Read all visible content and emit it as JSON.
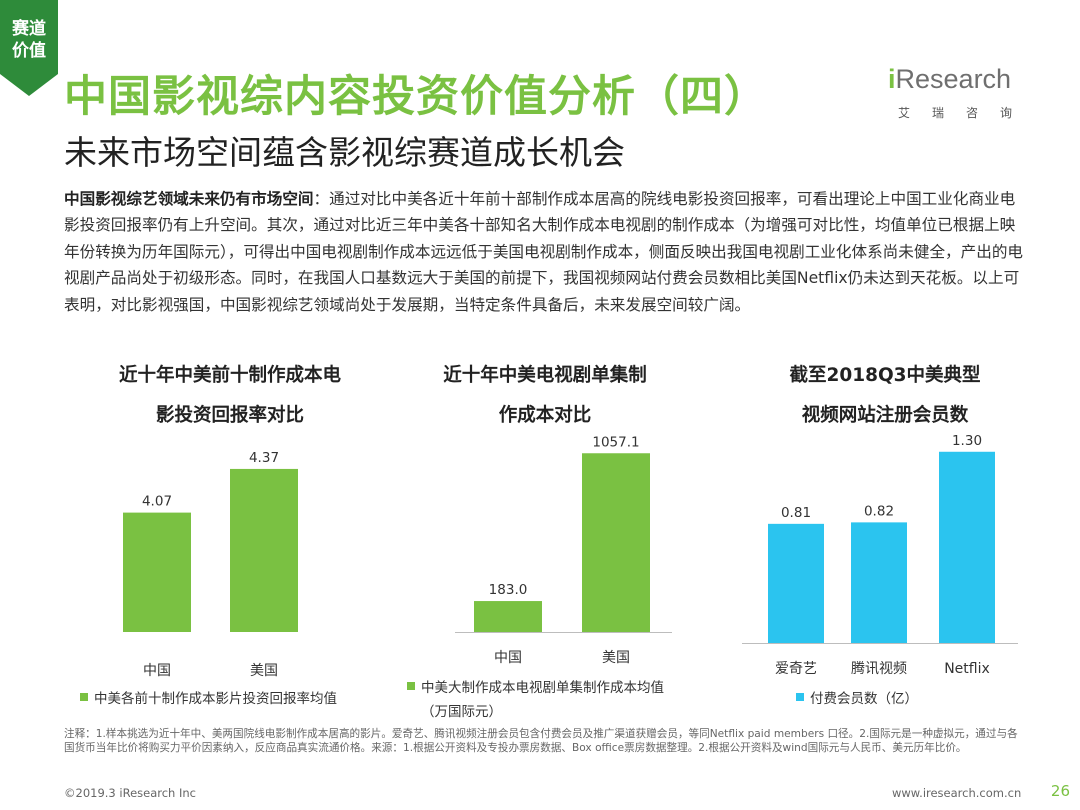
{
  "corner_tag": {
    "line1": "赛道",
    "line2": "价值"
  },
  "header": {
    "title": "中国影视综内容投资价值分析（四）",
    "subtitle": "未来市场空间蕴含影视综赛道成长机会"
  },
  "logo": {
    "brand_prefix": "i",
    "brand_rest": "Research",
    "cn": "艾瑞咨询"
  },
  "intro": {
    "lead": "中国影视综艺领域未来仍有市场空间",
    "body": "：通过对比中美各近十年前十部制作成本居高的院线电影投资回报率，可看出理论上中国工业化商业电影投资回报率仍有上升空间。其次，通过对比近三年中美各十部知名大制作成本电视剧的制作成本（为增强可对比性，均值单位已根据上映年份转换为历年国际元），可得出中国电视剧制作成本远远低于美国电视剧制作成本，侧面反映出我国电视剧工业化体系尚未健全，产出的电视剧产品尚处于初级形态。同时，在我国人口基数远大于美国的前提下，我国视频网站付费会员数相比美国Netflix仍未达到天花板。以上可表明，对比影视强国，中国影视综艺领域尚处于发展期，当特定条件具备后，未来发展空间较广阔。"
  },
  "chart_data": [
    {
      "type": "bar",
      "title": "近十年中美前十制作成本电影投资回报率对比",
      "title_lines": [
        "近十年中美前十制作成本电",
        "影投资回报率对比"
      ],
      "categories": [
        "中国",
        "美国"
      ],
      "values": [
        4.07,
        4.37
      ],
      "value_labels": [
        "4.07",
        "4.37"
      ],
      "legend": "中美各前十制作成本影片投资回报率均值",
      "legend_position": "bottom",
      "color": "#7ac142",
      "ylim": [
        3.25,
        4.5
      ],
      "grid": false
    },
    {
      "type": "bar",
      "title": "近十年中美电视剧单集制作成本对比",
      "title_lines": [
        "近十年中美电视剧单集制",
        "作成本对比"
      ],
      "categories": [
        "中国",
        "美国"
      ],
      "values": [
        183.0,
        1057.1
      ],
      "value_labels": [
        "183.0",
        "1057.1"
      ],
      "legend": "中美大制作成本电视剧单集制作成本均值（万国际元）",
      "legend_lines": [
        "中美大制作成本电视剧单集制作成本均值",
        "（万国际元）"
      ],
      "legend_position": "bottom",
      "color": "#7ac142",
      "ylim": [
        0,
        1100
      ],
      "grid": false
    },
    {
      "type": "bar",
      "title": "截至2018Q3中美典型视频网站注册会员数",
      "title_lines": [
        "截至2018Q3中美典型",
        "视频网站注册会员数"
      ],
      "categories": [
        "爱奇艺",
        "腾讯视频",
        "Netflix"
      ],
      "values": [
        0.81,
        0.82,
        1.3
      ],
      "value_labels": [
        "0.81",
        "0.82",
        "1.30"
      ],
      "legend": "付费会员数（亿）",
      "legend_position": "bottom",
      "color": "#2bc4ef",
      "ylim": [
        0,
        1.38
      ],
      "grid": false
    }
  ],
  "notes": "注释：1.样本挑选为近十年中、美两国院线电影制作成本居高的影片。爱奇艺、腾讯视频注册会员包含付费会员及推广渠道获赠会员，等同Netflix paid members 口径。2.国际元是一种虚拟元，通过与各国货币当年比价将购买力平价因素纳入，反应商品真实流通价格。来源：1.根据公开资料及专投办票房数据、Box office票房数据整理。2.根据公开资料及wind国际元与人民币、美元历年比价。",
  "footer": {
    "copyright": "©2019.3 iResearch Inc",
    "site": "www.iresearch.com.cn",
    "page": "26"
  },
  "colors": {
    "accent": "#7ac142",
    "blue": "#2bc4ef",
    "dark_green": "#2e8b3a"
  }
}
